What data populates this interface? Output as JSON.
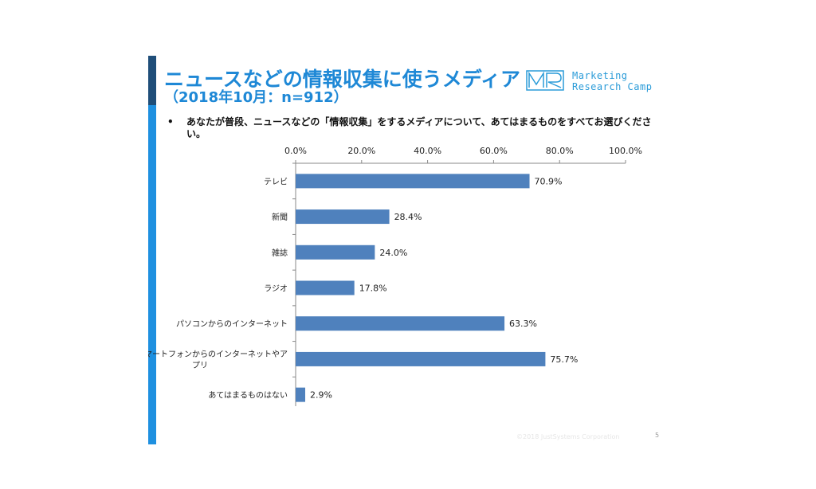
{
  "slide": {
    "title": "ニュースなどの情報収集に使うメディア",
    "subtitle": "（2018年10月：n=912）",
    "brand_line1": "Marketing",
    "brand_line2": "Research Camp",
    "logo_text": "MRC",
    "bullet": "•",
    "question": "あなたが普段、ニュースなどの「情報収集」をするメディアについて、あてはまるものをすべてお選びください。",
    "copyright": "©2018 JustSystems Corporation",
    "page_number": "5",
    "colors": {
      "accent": "#1e88d6",
      "bar": "#4f81bd",
      "sidebar": "#1e90e0",
      "sidebar_top": "#1f4e79"
    }
  },
  "chart_data": {
    "type": "bar",
    "orientation": "horizontal",
    "categories": [
      "テレビ",
      "新聞",
      "雑誌",
      "ラジオ",
      "パソコンからのインターネット",
      "スマートフォンからのインターネットやアプリ",
      "あてはまるものはない"
    ],
    "category_lines": [
      [
        "テレビ"
      ],
      [
        "新聞"
      ],
      [
        "雑誌"
      ],
      [
        "ラジオ"
      ],
      [
        "パソコンからのインターネット"
      ],
      [
        "スマートフォンからのインターネットやア",
        "プリ"
      ],
      [
        "あてはまるものはない"
      ]
    ],
    "values": [
      70.9,
      28.4,
      24.0,
      17.8,
      63.3,
      75.7,
      2.9
    ],
    "value_labels": [
      "70.9%",
      "28.4%",
      "24.0%",
      "17.8%",
      "63.3%",
      "75.7%",
      "2.9%"
    ],
    "xlim": [
      0,
      100
    ],
    "tick_values": [
      0,
      20,
      40,
      60,
      80,
      100
    ],
    "tick_labels": [
      "0.0%",
      "20.0%",
      "40.0%",
      "60.0%",
      "80.0%",
      "100.0%"
    ],
    "axis_position": "top",
    "grid": false,
    "legend": "none"
  }
}
